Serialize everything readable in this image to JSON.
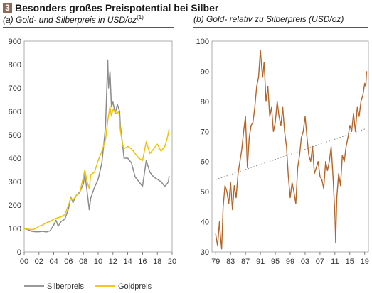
{
  "figure": {
    "number": "3",
    "title": "Besonders großes Preispotential bei Silber"
  },
  "panel_a": {
    "subtitle": "(a) Gold- und Silberpreis in USD/oz",
    "footnote_ref": "(1)"
  },
  "panel_b": {
    "subtitle": "(b) Gold- relativ zu Silberpreis (USD/oz)"
  },
  "colors": {
    "silver": "#8c8c8c",
    "gold": "#f2c200",
    "ratio": "#b4662a",
    "trend": "#888888"
  },
  "chart_data": [
    {
      "type": "line",
      "indexed": true,
      "ylim": [
        0,
        900
      ],
      "yticks": [
        0,
        100,
        200,
        300,
        400,
        500,
        600,
        700,
        800,
        900
      ],
      "xlim": [
        2000,
        2020
      ],
      "xtick_labels": [
        "00",
        "02",
        "04",
        "06",
        "08",
        "10",
        "12",
        "14",
        "16",
        "18",
        "20"
      ],
      "legend_position": "bottom",
      "series": [
        {
          "name": "Silberpreis",
          "color": "#8c8c8c",
          "x": [
            2000,
            2000.5,
            2001,
            2001.5,
            2002,
            2002.5,
            2003,
            2003.5,
            2004,
            2004.3,
            2004.6,
            2005,
            2005.5,
            2006,
            2006.3,
            2006.6,
            2007,
            2007.5,
            2008,
            2008.2,
            2008.5,
            2008.8,
            2009,
            2009.5,
            2010,
            2010.5,
            2010.8,
            2011,
            2011.2,
            2011.3,
            2011.4,
            2011.6,
            2011.8,
            2012,
            2012.3,
            2012.6,
            2012.9,
            2013,
            2013.3,
            2013.5,
            2014,
            2014.5,
            2015,
            2015.5,
            2016,
            2016.5,
            2017,
            2017.5,
            2018,
            2018.5,
            2019,
            2019.3,
            2019.5,
            2019.6
          ],
          "y": [
            100,
            95,
            88,
            86,
            86,
            88,
            85,
            90,
            115,
            135,
            110,
            130,
            140,
            185,
            235,
            210,
            240,
            255,
            290,
            330,
            260,
            180,
            230,
            275,
            310,
            380,
            470,
            540,
            730,
            820,
            700,
            770,
            620,
            640,
            590,
            630,
            600,
            540,
            460,
            400,
            400,
            380,
            320,
            300,
            280,
            390,
            340,
            320,
            310,
            300,
            280,
            290,
            300,
            325
          ]
        },
        {
          "name": "Goldpreis",
          "color": "#f2c200",
          "x": [
            2000,
            2000.5,
            2001,
            2001.5,
            2002,
            2002.5,
            2003,
            2003.5,
            2004,
            2004.5,
            2005,
            2005.5,
            2006,
            2006.3,
            2006.6,
            2007,
            2007.5,
            2008,
            2008.2,
            2008.5,
            2008.8,
            2009,
            2009.5,
            2010,
            2010.5,
            2011,
            2011.3,
            2011.6,
            2011.8,
            2012,
            2012.5,
            2012.8,
            2013,
            2013.3,
            2013.5,
            2014,
            2014.5,
            2015,
            2015.5,
            2016,
            2016.5,
            2017,
            2017.5,
            2018,
            2018.5,
            2019,
            2019.3,
            2019.5,
            2019.6
          ],
          "y": [
            100,
            97,
            95,
            98,
            110,
            115,
            125,
            130,
            140,
            145,
            150,
            160,
            200,
            230,
            220,
            240,
            250,
            320,
            350,
            300,
            270,
            330,
            340,
            390,
            430,
            480,
            560,
            620,
            580,
            610,
            590,
            600,
            520,
            460,
            440,
            450,
            440,
            420,
            400,
            390,
            470,
            420,
            440,
            460,
            430,
            450,
            480,
            510,
            525
          ]
        }
      ]
    },
    {
      "type": "line",
      "ylim": [
        30,
        100
      ],
      "yticks": [
        30,
        40,
        50,
        60,
        70,
        80,
        90,
        100
      ],
      "xlim": [
        1978,
        2020
      ],
      "xtick_labels": [
        "79",
        "83",
        "87",
        "91",
        "95",
        "99",
        "03",
        "07",
        "11",
        "15",
        "19"
      ],
      "series": [
        {
          "color": "#b4662a",
          "x": [
            1979,
            1979.5,
            1980,
            1980.3,
            1980.6,
            1981,
            1981.5,
            1982,
            1982.5,
            1983,
            1983.5,
            1984,
            1984.5,
            1985,
            1985.5,
            1986,
            1986.5,
            1987,
            1987.5,
            1988,
            1988.5,
            1989,
            1989.5,
            1990,
            1990.5,
            1991,
            1991.3,
            1991.6,
            1992,
            1992.5,
            1993,
            1993.5,
            1994,
            1994.5,
            1995,
            1995.5,
            1996,
            1996.5,
            1997,
            1997.5,
            1998,
            1998.5,
            1999,
            1999.5,
            2000,
            2000.5,
            2001,
            2001.5,
            2002,
            2002.5,
            2003,
            2003.5,
            2004,
            2004.5,
            2005,
            2005.5,
            2006,
            2006.5,
            2007,
            2007.5,
            2008,
            2008.5,
            2009,
            2009.5,
            2010,
            2010.5,
            2011,
            2011.2,
            2011.5,
            2012,
            2012.5,
            2013,
            2013.5,
            2014,
            2014.5,
            2015,
            2015.5,
            2016,
            2016.5,
            2017,
            2017.5,
            2018,
            2018.5,
            2019,
            2019.3,
            2019.5
          ],
          "y": [
            36,
            32,
            40,
            35,
            31,
            45,
            52,
            50,
            46,
            53,
            44,
            52,
            48,
            56,
            60,
            64,
            70,
            75,
            58,
            68,
            72,
            73,
            78,
            85,
            88,
            97,
            92,
            88,
            93,
            80,
            85,
            75,
            78,
            70,
            73,
            80,
            75,
            72,
            78,
            70,
            65,
            55,
            48,
            53,
            50,
            46,
            58,
            62,
            68,
            70,
            75,
            68,
            62,
            60,
            65,
            56,
            58,
            60,
            55,
            54,
            51,
            60,
            57,
            60,
            65,
            55,
            42,
            33,
            48,
            56,
            52,
            62,
            60,
            65,
            68,
            72,
            70,
            76,
            70,
            78,
            75,
            80,
            82,
            86,
            85,
            90
          ]
        },
        {
          "color": "#888888",
          "x": [
            1979,
            2019.5
          ],
          "y": [
            54,
            71
          ]
        }
      ]
    }
  ]
}
